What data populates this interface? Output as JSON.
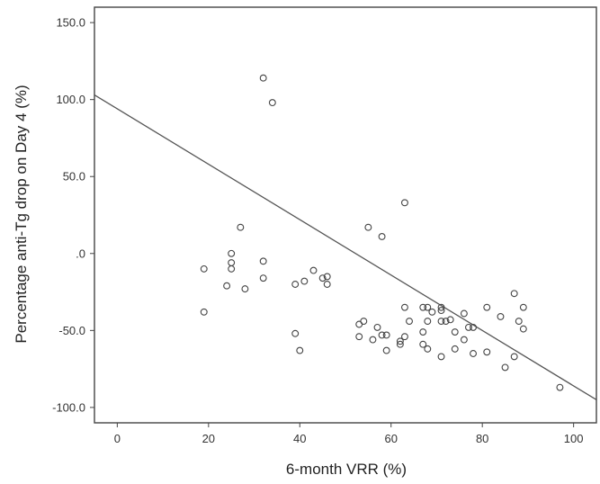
{
  "chart_data": {
    "type": "scatter",
    "title": "",
    "xlabel": "6-month VRR (%)",
    "ylabel": "Percentage anti-Tg drop on Day 4 (%)",
    "xlim": [
      -5,
      105
    ],
    "ylim": [
      -110,
      160
    ],
    "x_ticks": [
      0,
      20,
      40,
      60,
      80,
      100
    ],
    "x_tick_labels": [
      "0",
      "20",
      "40",
      "60",
      "80",
      "100"
    ],
    "y_ticks": [
      150,
      100,
      50,
      0,
      -50,
      -100
    ],
    "y_tick_labels": [
      "150.0",
      "100.0",
      "50.0",
      ".0",
      "-50.0",
      "-100.0"
    ],
    "grid": false,
    "legend": "none",
    "marker": "open-circle",
    "colors": {
      "axis": "#444444",
      "marker": "#444444",
      "line": "#555555"
    },
    "points": [
      [
        19,
        -10
      ],
      [
        19,
        -38
      ],
      [
        24,
        -21
      ],
      [
        25,
        0
      ],
      [
        25,
        -6
      ],
      [
        25,
        -10
      ],
      [
        27,
        17
      ],
      [
        28,
        -23
      ],
      [
        32,
        114
      ],
      [
        32,
        -5
      ],
      [
        32,
        -16
      ],
      [
        34,
        98
      ],
      [
        39,
        -20
      ],
      [
        39,
        -52
      ],
      [
        40,
        -63
      ],
      [
        41,
        -18
      ],
      [
        43,
        -11
      ],
      [
        45,
        -16
      ],
      [
        46,
        -15
      ],
      [
        46,
        -20
      ],
      [
        53,
        -46
      ],
      [
        53,
        -54
      ],
      [
        54,
        -44
      ],
      [
        55,
        17
      ],
      [
        56,
        -56
      ],
      [
        57,
        -48
      ],
      [
        58,
        11
      ],
      [
        58,
        -53
      ],
      [
        59,
        -53
      ],
      [
        59,
        -63
      ],
      [
        62,
        -57
      ],
      [
        62,
        -59
      ],
      [
        63,
        33
      ],
      [
        63,
        -35
      ],
      [
        63,
        -54
      ],
      [
        64,
        -44
      ],
      [
        67,
        -35
      ],
      [
        67,
        -51
      ],
      [
        67,
        -59
      ],
      [
        68,
        -35
      ],
      [
        68,
        -44
      ],
      [
        68,
        -62
      ],
      [
        69,
        -38
      ],
      [
        71,
        -35
      ],
      [
        71,
        -37
      ],
      [
        71,
        -44
      ],
      [
        71,
        -67
      ],
      [
        72,
        -44
      ],
      [
        73,
        -43
      ],
      [
        74,
        -51
      ],
      [
        74,
        -62
      ],
      [
        76,
        -39
      ],
      [
        76,
        -56
      ],
      [
        77,
        -48
      ],
      [
        78,
        -48
      ],
      [
        78,
        -65
      ],
      [
        81,
        -35
      ],
      [
        81,
        -64
      ],
      [
        84,
        -41
      ],
      [
        85,
        -74
      ],
      [
        87,
        -26
      ],
      [
        87,
        -67
      ],
      [
        88,
        -44
      ],
      [
        89,
        -35
      ],
      [
        89,
        -49
      ],
      [
        97,
        -87
      ]
    ],
    "fit_line": {
      "x": [
        -5,
        105
      ],
      "y": [
        103,
        -95
      ]
    }
  }
}
